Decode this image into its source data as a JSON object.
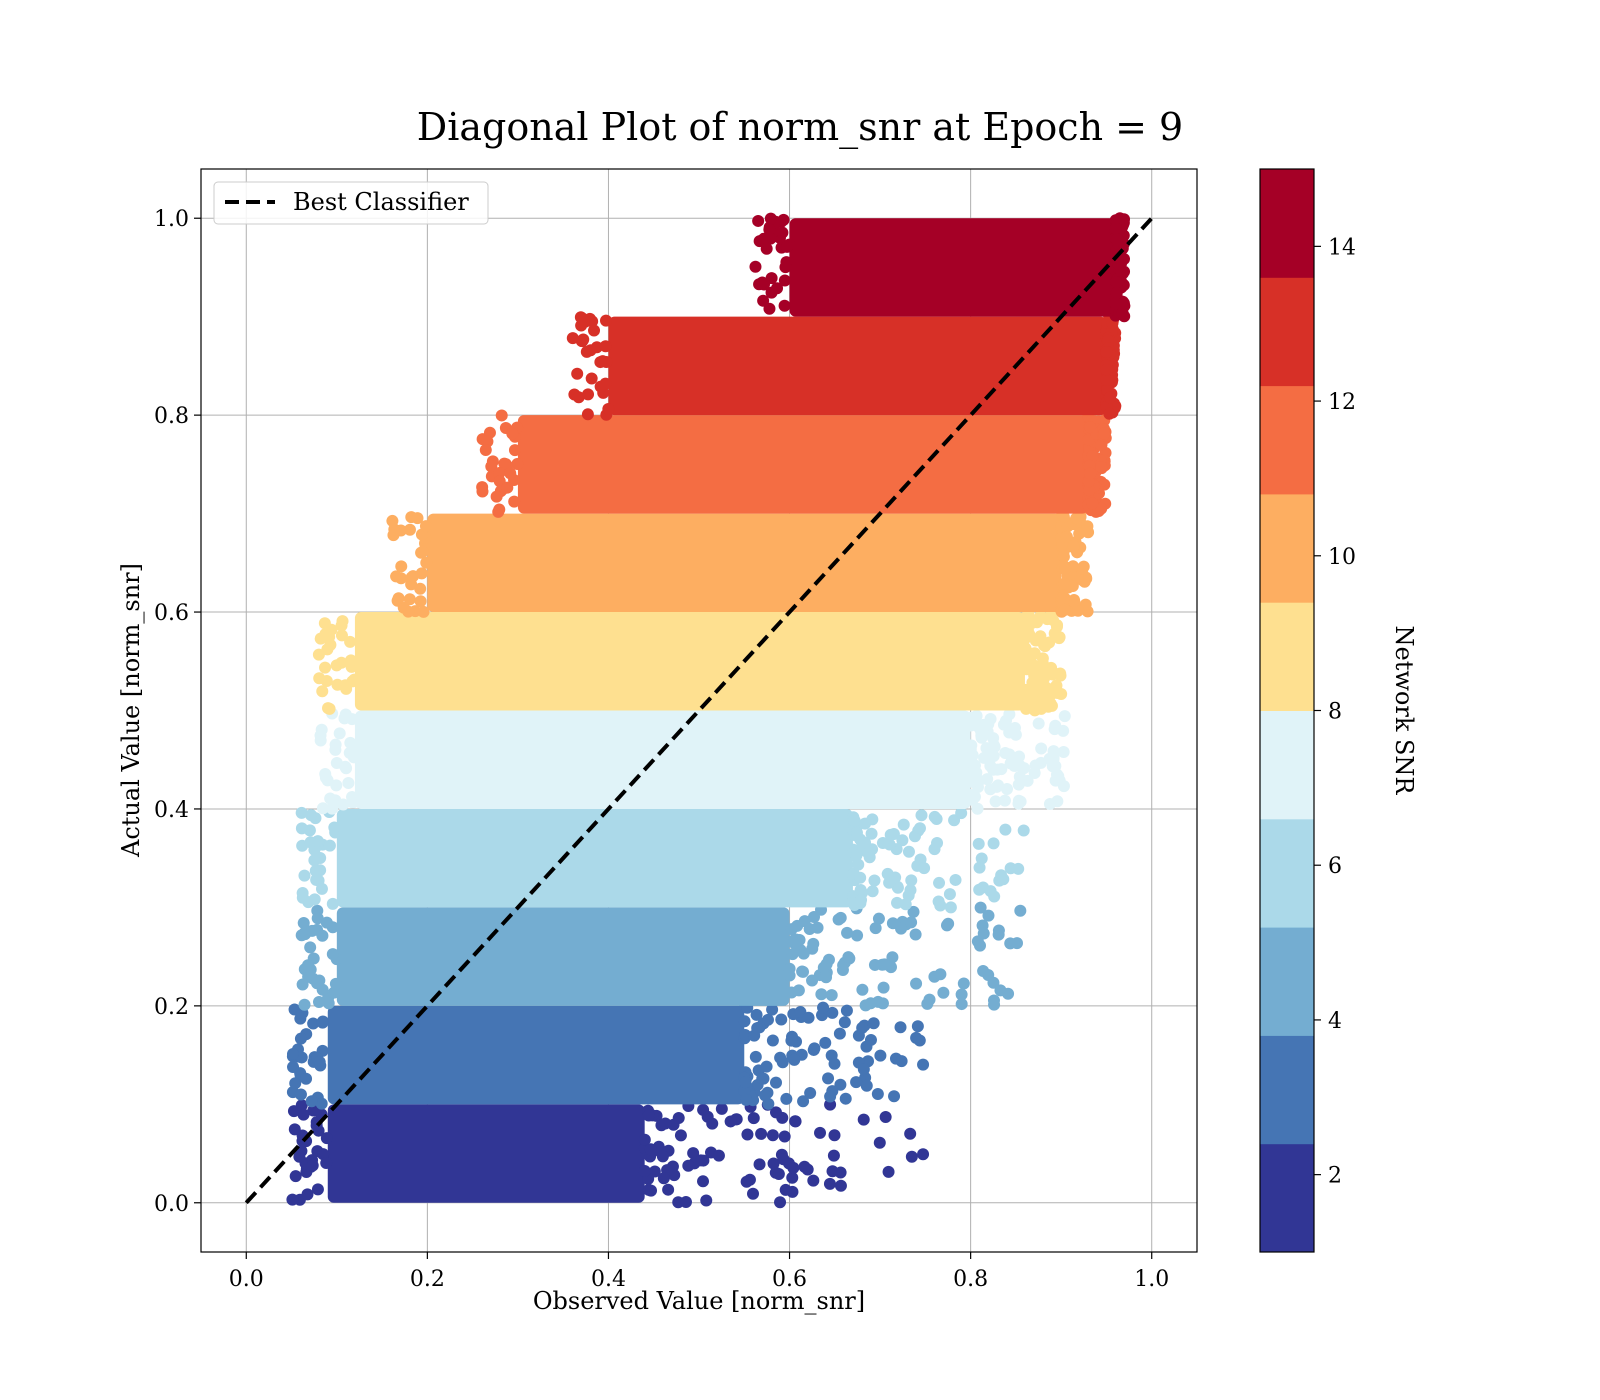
{
  "chart_data": {
    "type": "scatter",
    "title": "Diagonal Plot of norm_snr at Epoch = 9",
    "xlabel": "Observed Value [norm_snr]",
    "ylabel": "Actual Value [norm_snr]",
    "xlim": [
      -0.05,
      1.05
    ],
    "ylim": [
      -0.05,
      1.05
    ],
    "xticks": [
      "0.0",
      "0.2",
      "0.4",
      "0.6",
      "0.8",
      "1.0"
    ],
    "yticks": [
      "0.0",
      "0.2",
      "0.4",
      "0.6",
      "0.8",
      "1.0"
    ],
    "grid": true,
    "legend": {
      "position": "top-left",
      "entries": [
        "Best Classifier"
      ]
    },
    "reference_line": {
      "name": "Best Classifier",
      "style": "dashed",
      "color": "#000000",
      "x": [
        0.0,
        1.0
      ],
      "y": [
        0.0,
        1.0
      ]
    },
    "colorbar": {
      "label": "Network SNR",
      "range": [
        1,
        15
      ],
      "ticks": [
        "2",
        "4",
        "6",
        "8",
        "10",
        "12",
        "14"
      ],
      "colors": [
        "#313695",
        "#4575b4",
        "#74add1",
        "#abd9e9",
        "#e0f3f8",
        "#fee090",
        "#fdae61",
        "#f46d43",
        "#d73027",
        "#a50026"
      ]
    },
    "bands": [
      {
        "snr_bin": "1.0-2.4",
        "y_range": [
          0.0,
          0.1
        ],
        "x_core": [
          0.09,
          0.44
        ],
        "x_tail_max": 0.75,
        "color": "#313695"
      },
      {
        "snr_bin": "2.4-3.8",
        "y_range": [
          0.1,
          0.2
        ],
        "x_core": [
          0.09,
          0.55
        ],
        "x_tail_max": 0.75,
        "color": "#4575b4"
      },
      {
        "snr_bin": "3.8-5.2",
        "y_range": [
          0.2,
          0.3
        ],
        "x_core": [
          0.1,
          0.6
        ],
        "x_tail_max": 0.86,
        "color": "#74add1"
      },
      {
        "snr_bin": "5.2-6.6",
        "y_range": [
          0.3,
          0.4
        ],
        "x_core": [
          0.1,
          0.67
        ],
        "x_tail_max": 0.86,
        "color": "#abd9e9"
      },
      {
        "snr_bin": "6.6-8.0",
        "y_range": [
          0.4,
          0.5
        ],
        "x_core": [
          0.12,
          0.8
        ],
        "x_tail_max": 0.91,
        "color": "#e0f3f8"
      },
      {
        "snr_bin": "8.0-9.4",
        "y_range": [
          0.5,
          0.6
        ],
        "x_core": [
          0.12,
          0.86
        ],
        "x_tail_max": 0.9,
        "color": "#fee090"
      },
      {
        "snr_bin": "9.4-10.8",
        "y_range": [
          0.6,
          0.7
        ],
        "x_core": [
          0.2,
          0.9
        ],
        "x_tail_max": 0.93,
        "color": "#fdae61"
      },
      {
        "snr_bin": "10.8-12.2",
        "y_range": [
          0.7,
          0.8
        ],
        "x_core": [
          0.3,
          0.93
        ],
        "x_tail_max": 0.95,
        "color": "#f46d43"
      },
      {
        "snr_bin": "12.2-13.6",
        "y_range": [
          0.8,
          0.9
        ],
        "x_core": [
          0.4,
          0.95
        ],
        "x_tail_max": 0.96,
        "color": "#d73027"
      },
      {
        "snr_bin": "13.6-15.0",
        "y_range": [
          0.9,
          1.0
        ],
        "x_core": [
          0.6,
          0.96
        ],
        "x_tail_max": 0.97,
        "color": "#a50026"
      }
    ]
  }
}
